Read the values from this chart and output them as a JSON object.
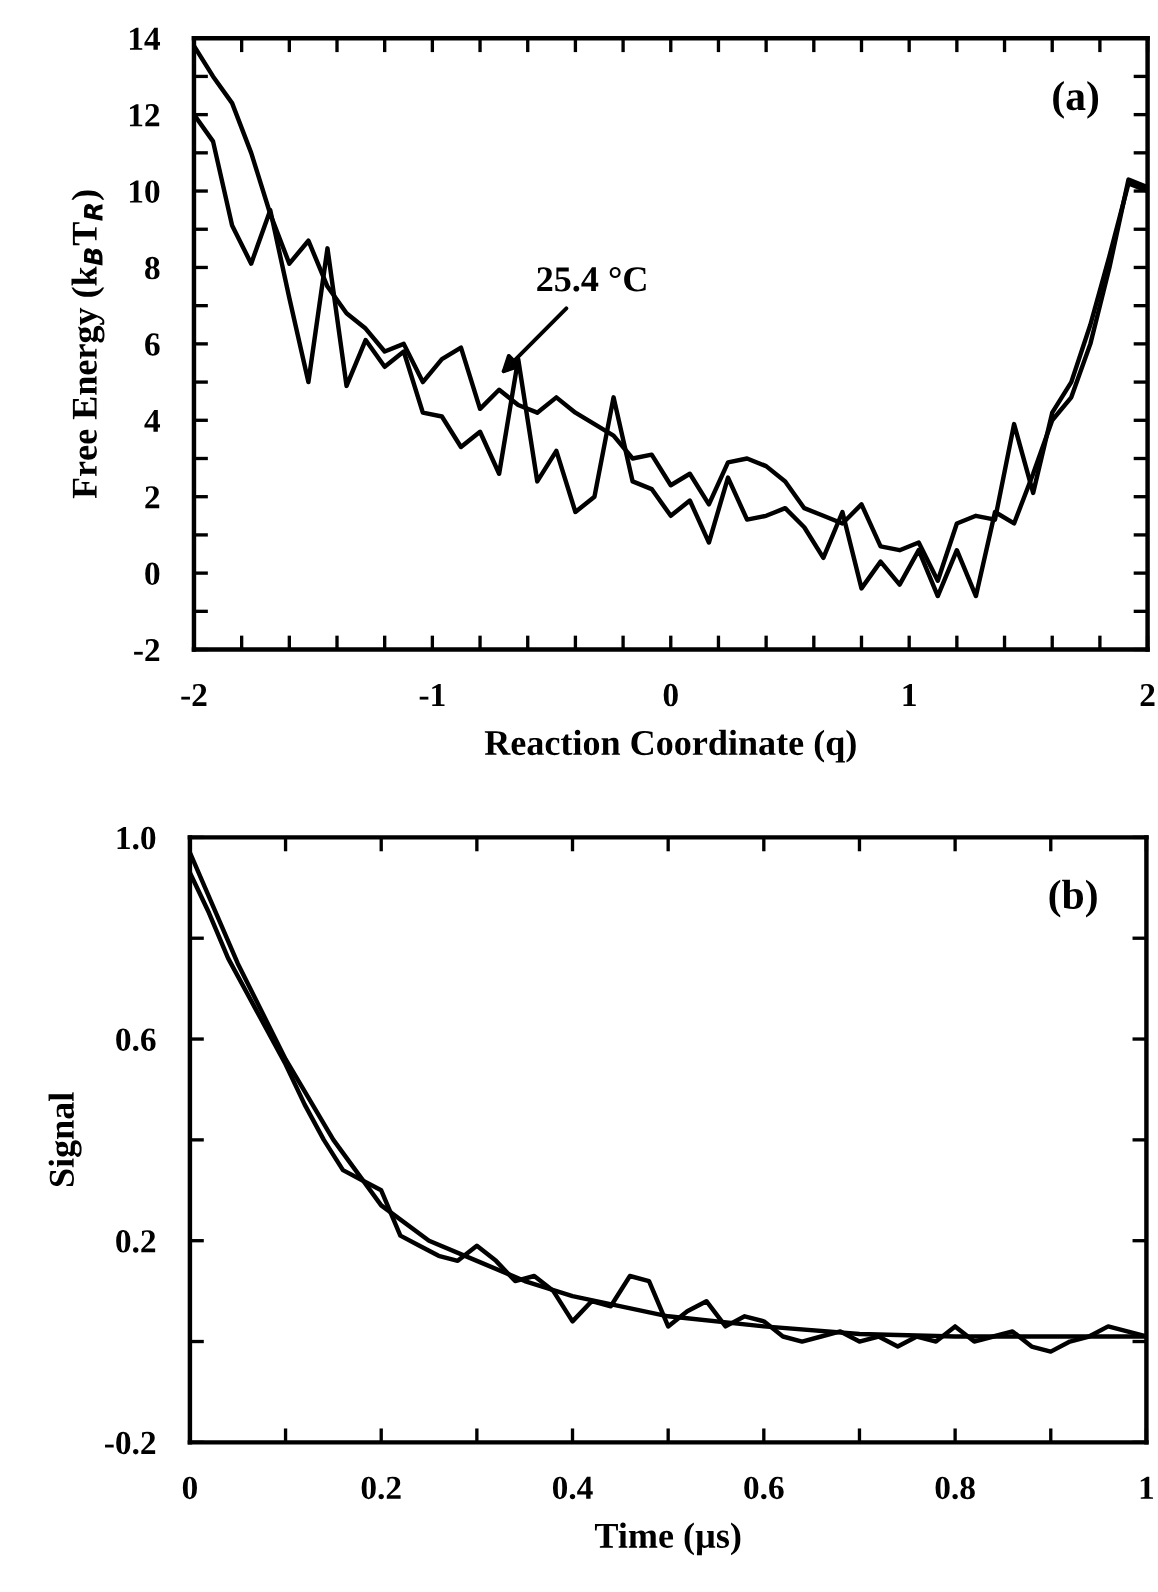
{
  "chart_data": [
    {
      "type": "line",
      "xlabel": "Reaction Coordinate (q)",
      "ylabel": "Free Energy (k$_{B}$T$_{R}$)",
      "xlim": [
        -2,
        2
      ],
      "ylim": [
        -2,
        14
      ],
      "xticks": [
        -2,
        {
          "value": -1.8,
          "label": null
        },
        {
          "value": -1.6,
          "label": null
        },
        {
          "value": -1.4,
          "label": null
        },
        {
          "value": -1.2,
          "label": null
        },
        -1,
        {
          "value": -0.8,
          "label": null
        },
        {
          "value": -0.6,
          "label": null
        },
        {
          "value": -0.4,
          "label": null
        },
        {
          "value": -0.2,
          "label": null
        },
        0,
        {
          "value": 0.2,
          "label": null
        },
        {
          "value": 0.4,
          "label": null
        },
        {
          "value": 0.6,
          "label": null
        },
        {
          "value": 0.8,
          "label": null
        },
        1,
        {
          "value": 1.2,
          "label": null
        },
        {
          "value": 1.4,
          "label": null
        },
        {
          "value": 1.6,
          "label": null
        },
        {
          "value": 1.8,
          "label": null
        },
        2
      ],
      "yticks": [
        -2,
        {
          "value": -1,
          "label": null
        },
        0,
        {
          "value": 1,
          "label": null
        },
        2,
        {
          "value": 3,
          "label": null
        },
        4,
        {
          "value": 5,
          "label": null
        },
        6,
        {
          "value": 7,
          "label": null
        },
        8,
        {
          "value": 9,
          "label": null
        },
        10,
        {
          "value": 11,
          "label": null
        },
        12,
        {
          "value": 13,
          "label": null
        },
        14
      ],
      "x": [
        -2,
        -1.92,
        -1.84,
        -1.76,
        -1.68,
        -1.6,
        -1.52,
        -1.44,
        -1.36,
        -1.28,
        -1.2,
        -1.12,
        -1.04,
        -0.96,
        -0.88,
        -0.8,
        -0.72,
        -0.64,
        -0.56,
        -0.48,
        -0.4,
        -0.32,
        -0.24,
        -0.16,
        -0.08,
        0,
        0.08,
        0.16,
        0.24,
        0.32,
        0.4,
        0.48,
        0.56,
        0.64,
        0.72,
        0.8,
        0.88,
        0.96,
        1.04,
        1.12,
        1.2,
        1.28,
        1.36,
        1.44,
        1.52,
        1.6,
        1.68,
        1.76,
        1.84,
        1.92,
        2
      ],
      "series": [
        {
          "color": "#000000",
          "values": [
            13.8,
            13.0,
            12.3,
            11.0,
            9.4,
            8.1,
            8.7,
            7.5,
            6.8,
            6.4,
            5.8,
            6.0,
            5.0,
            5.6,
            5.9,
            4.3,
            4.8,
            4.4,
            4.2,
            4.6,
            4.2,
            3.9,
            3.6,
            3.0,
            3.1,
            2.3,
            2.6,
            1.8,
            2.9,
            3.0,
            2.8,
            2.4,
            1.7,
            1.5,
            1.3,
            1.8,
            0.7,
            0.6,
            0.8,
            -0.2,
            1.3,
            1.5,
            1.4,
            3.9,
            2.1,
            4.2,
            5.0,
            6.5,
            8.3,
            10.2,
            10.0
          ]
        },
        {
          "color": "#000000",
          "values": [
            12.0,
            11.3,
            9.1,
            8.1,
            9.5,
            7.2,
            5.0,
            8.5,
            4.9,
            6.1,
            5.4,
            5.8,
            4.2,
            4.1,
            3.3,
            3.7,
            2.6,
            5.6,
            2.4,
            3.2,
            1.6,
            2.0,
            4.6,
            2.4,
            2.2,
            1.5,
            1.9,
            0.8,
            2.5,
            1.4,
            1.5,
            1.7,
            1.2,
            0.4,
            1.6,
            -0.4,
            0.3,
            -0.3,
            0.6,
            -0.6,
            0.6,
            -0.6,
            1.6,
            1.3,
            2.6,
            4.0,
            4.6,
            6.0,
            8.0,
            10.3,
            10.1
          ]
        }
      ],
      "annotations": [
        {
          "text": "25.4 °C",
          "x": -0.73,
          "y": 5.1
        },
        "(a)"
      ]
    },
    {
      "type": "line",
      "xlabel": "Time (µs)",
      "ylabel": "Signal",
      "xlim": [
        0,
        1
      ],
      "ylim": [
        -0.2,
        1
      ],
      "xticks": [
        0,
        {
          "value": 0.1,
          "label": null
        },
        0.2,
        {
          "value": 0.3,
          "label": null
        },
        0.4,
        {
          "value": 0.5,
          "label": null
        },
        0.6,
        {
          "value": 0.7,
          "label": null
        },
        0.8,
        {
          "value": 0.9,
          "label": null
        },
        1
      ],
      "yticks": [
        -0.2,
        {
          "value": 0,
          "label": null
        },
        0.2,
        {
          "value": 0.4,
          "label": null
        },
        0.6,
        {
          "value": 0.8,
          "label": null
        },
        {
          "value": 1,
          "label": "1.0"
        }
      ],
      "series": [
        {
          "color": "#000000",
          "x": [
            0,
            0.02,
            0.04,
            0.06,
            0.08,
            0.1,
            0.12,
            0.14,
            0.16,
            0.18,
            0.2,
            0.22,
            0.24,
            0.26,
            0.28,
            0.3,
            0.32,
            0.34,
            0.36,
            0.38,
            0.4,
            0.42,
            0.44,
            0.46,
            0.48,
            0.5,
            0.52,
            0.54,
            0.56,
            0.58,
            0.6,
            0.62,
            0.64,
            0.66,
            0.68,
            0.7,
            0.72,
            0.74,
            0.76,
            0.78,
            0.8,
            0.82,
            0.84,
            0.86,
            0.88,
            0.9,
            0.92,
            0.94,
            0.96,
            0.98,
            1
          ],
          "values": [
            0.93,
            0.85,
            0.76,
            0.69,
            0.62,
            0.55,
            0.47,
            0.4,
            0.34,
            0.32,
            0.3,
            0.21,
            0.19,
            0.17,
            0.16,
            0.19,
            0.16,
            0.12,
            0.13,
            0.1,
            0.04,
            0.08,
            0.07,
            0.13,
            0.12,
            0.03,
            0.06,
            0.08,
            0.03,
            0.05,
            0.04,
            0.01,
            0.0,
            0.01,
            0.02,
            0.0,
            0.01,
            -0.01,
            0.01,
            0.0,
            0.03,
            0.0,
            0.01,
            0.02,
            -0.01,
            -0.02,
            0.0,
            0.01,
            0.03,
            0.02,
            0.01
          ]
        },
        {
          "color": "#000000",
          "x": [
            0,
            0.05,
            0.1,
            0.15,
            0.2,
            0.25,
            0.3,
            0.35,
            0.4,
            0.5,
            0.6,
            0.7,
            0.8,
            0.9,
            1
          ],
          "values": [
            0.97,
            0.75,
            0.56,
            0.4,
            0.27,
            0.2,
            0.16,
            0.12,
            0.09,
            0.05,
            0.03,
            0.015,
            0.01,
            0.01,
            0.01
          ]
        }
      ],
      "annotations": [
        "(b)"
      ]
    }
  ]
}
